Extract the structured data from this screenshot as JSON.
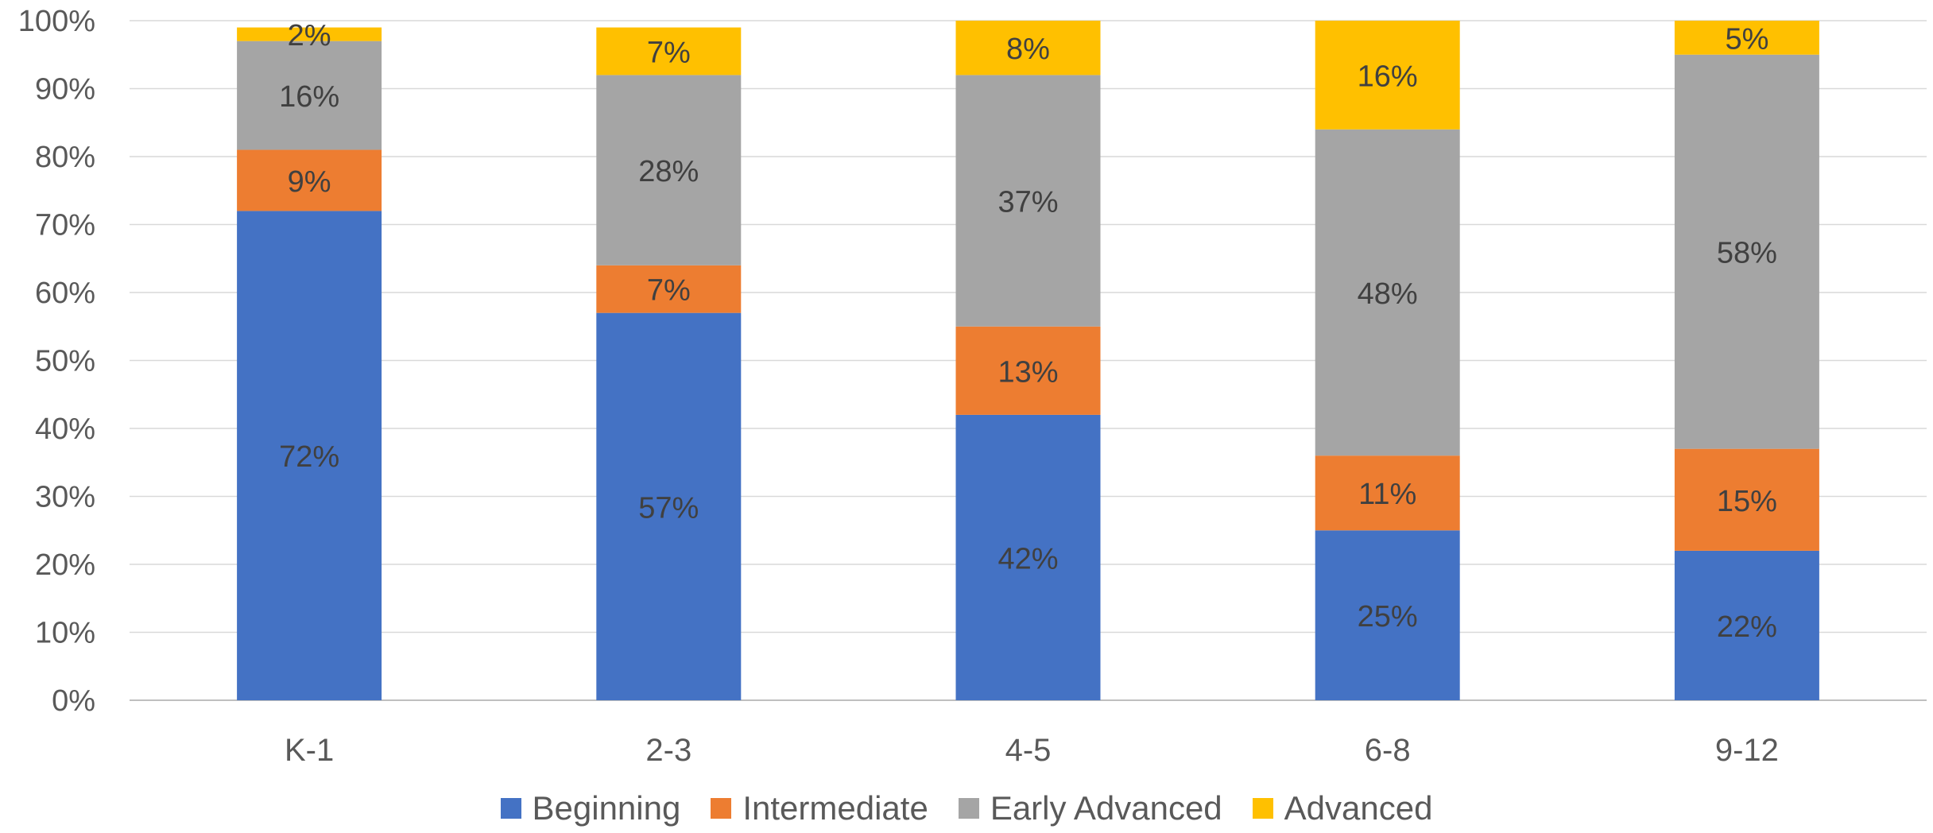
{
  "chart_data": {
    "type": "bar",
    "stacked": true,
    "categories": [
      "K-1",
      "2-3",
      "4-5",
      "6-8",
      "9-12"
    ],
    "series": [
      {
        "name": "Beginning",
        "color": "#4472C4",
        "values": [
          72,
          57,
          42,
          25,
          22
        ],
        "labels": [
          "72%",
          "57%",
          "42%",
          "25%",
          "22%"
        ]
      },
      {
        "name": "Intermediate",
        "color": "#ED7D31",
        "values": [
          9,
          7,
          13,
          11,
          15
        ],
        "labels": [
          "9%",
          "7%",
          "13%",
          "11%",
          "15%"
        ]
      },
      {
        "name": "Early Advanced",
        "color": "#A5A5A5",
        "values": [
          16,
          28,
          37,
          48,
          58
        ],
        "labels": [
          "16%",
          "28%",
          "37%",
          "48%",
          "58%"
        ]
      },
      {
        "name": "Advanced",
        "color": "#FFC000",
        "values": [
          2,
          7,
          8,
          16,
          5
        ],
        "labels": [
          "2%",
          "7%",
          "8%",
          "16%",
          "5%"
        ]
      }
    ],
    "ylim": [
      0,
      100
    ],
    "yticks": [
      "0%",
      "10%",
      "20%",
      "30%",
      "40%",
      "50%",
      "60%",
      "70%",
      "80%",
      "90%",
      "100%"
    ],
    "grid": true,
    "legend_position": "bottom",
    "title": "",
    "xlabel": "",
    "ylabel": ""
  }
}
